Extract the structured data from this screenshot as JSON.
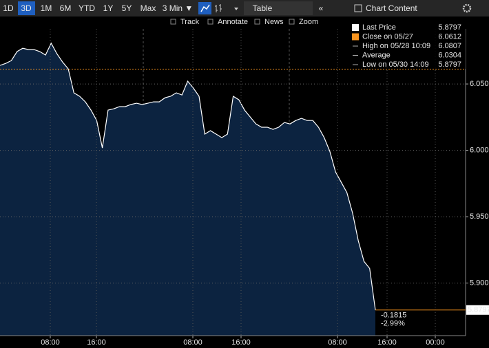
{
  "toolbar": {
    "ranges": [
      "1D",
      "3D",
      "1M",
      "6M",
      "YTD",
      "1Y",
      "5Y",
      "Max"
    ],
    "interval": "3 Min ▼",
    "table": "Table",
    "chart_content": "Chart Content"
  },
  "tools": [
    "Track",
    "Annotate",
    "News",
    "Zoom"
  ],
  "chart_data": {
    "type": "line",
    "series": [
      {
        "name": "Last Price",
        "color": "#ffffff",
        "values": [
          6.064,
          6.0655,
          6.0676,
          6.0744,
          6.0769,
          6.0759,
          6.0759,
          6.0744,
          6.0718,
          6.0807,
          6.0728,
          6.0666,
          6.0614,
          6.0433,
          6.0407,
          6.0365,
          6.0303,
          6.0225,
          6.0018,
          6.0303,
          6.0313,
          6.0329,
          6.0329,
          6.0345,
          6.0355,
          6.0345,
          6.0355,
          6.0365,
          6.0365,
          6.0396,
          6.0407,
          6.0433,
          6.0417,
          6.0521,
          6.0469,
          6.0407,
          6.0122,
          6.0148,
          6.0122,
          6.0096,
          6.0122,
          6.0407,
          6.0381,
          6.0303,
          6.0251,
          6.0199,
          6.0174,
          6.0174,
          6.0158,
          6.0174,
          6.021,
          6.0199,
          6.0225,
          6.0241,
          6.0225,
          6.0225,
          6.0174,
          6.0096,
          5.9992,
          5.9837,
          5.9759,
          5.9681,
          5.9526,
          5.9319,
          5.9163,
          5.9111,
          5.8797
        ]
      }
    ],
    "legend": [
      {
        "name": "Last Price",
        "value": 5.8797,
        "color": "#ffffff"
      },
      {
        "name": "Close on 05/27",
        "value": 6.0612,
        "color": "#f7931e"
      },
      {
        "name": "High on 05/28 10:09",
        "value": 6.0807
      },
      {
        "name": "Average",
        "value": 6.0304
      },
      {
        "name": "Low on 05/30 14:09",
        "value": 5.8797
      }
    ],
    "annotations": [
      "-0.1815",
      "-2.99%"
    ],
    "xtick_labels": [
      "08:00",
      "16:00",
      "08:00",
      "16:00",
      "08:00",
      "16:00",
      "00:00"
    ],
    "ylim": [
      5.8604,
      6.0915
    ],
    "yticks": [
      {
        "value": 5.9,
        "label": "5.900"
      },
      {
        "value": 5.95,
        "label": "5.950"
      },
      {
        "value": 6.0,
        "label": "6.000"
      },
      {
        "value": 6.05,
        "label": "6.050"
      }
    ],
    "grid": true
  }
}
